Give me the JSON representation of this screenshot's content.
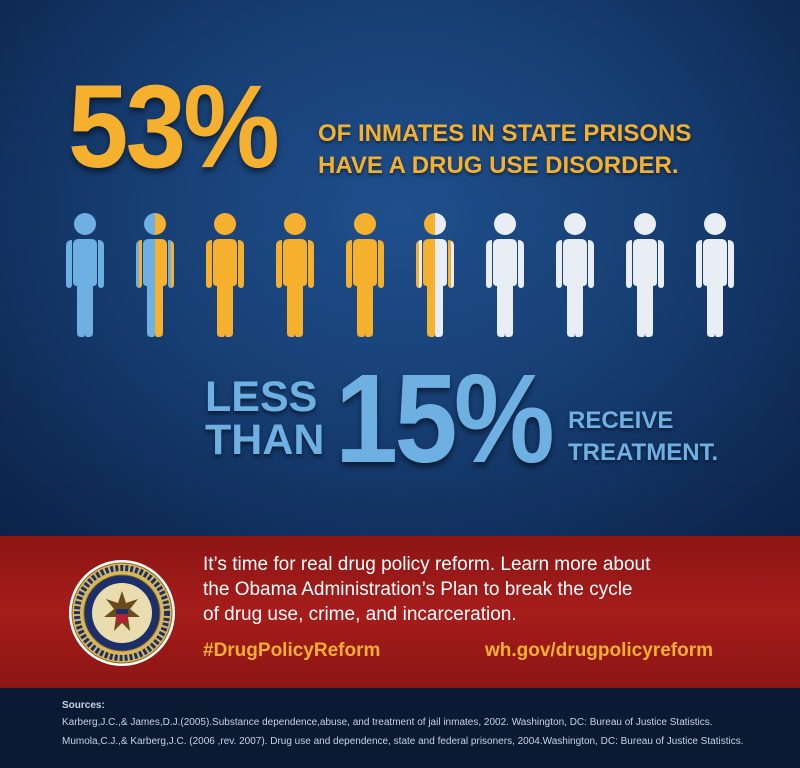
{
  "headline": {
    "percent": "53%",
    "line1": "OF INMATES IN STATE PRISONS",
    "line2": "HAVE A DRUG USE DISORDER."
  },
  "people_graphic": {
    "total_figures": 10,
    "figures": [
      {
        "fill": "blue"
      },
      {
        "fill": "split-blue-gold"
      },
      {
        "fill": "gold"
      },
      {
        "fill": "gold"
      },
      {
        "fill": "gold"
      },
      {
        "fill": "split-gold-white"
      },
      {
        "fill": "white"
      },
      {
        "fill": "white"
      },
      {
        "fill": "white"
      },
      {
        "fill": "white"
      }
    ]
  },
  "treatment": {
    "less": "LESS",
    "than": "THAN",
    "percent": "15%",
    "line1": "RECEIVE",
    "line2": "TREATMENT."
  },
  "banner": {
    "seal_icon": "executive-office-of-the-president-seal",
    "message_line1": "It’s time for real drug policy reform. Learn more about",
    "message_line2": "the Obama Administration’s Plan to break the cycle",
    "message_line3": "of drug use, crime, and incarceration.",
    "hashtag": "#DrugPolicyReform",
    "url": "wh.gov/drugpolicyreform"
  },
  "sources": {
    "title": "Sources:",
    "items": [
      "Karberg,J.C.,& James,D.J.(2005).Substance dependence,abuse, and treatment of jail inmates, 2002. Washington, DC: Bureau of Justice Statistics.",
      "Mumola,C.J.,& Karberg,J.C. (2006 ,rev. 2007). Drug use and dependence, state and federal prisoners, 2004.Washington, DC: Bureau of Justice Statistics."
    ]
  },
  "colors": {
    "gold": "#f5b02e",
    "light_blue": "#6fb0e2",
    "figure_white": "#e8eef4",
    "banner_red": "#a51d1b",
    "navy": "#17407a"
  }
}
